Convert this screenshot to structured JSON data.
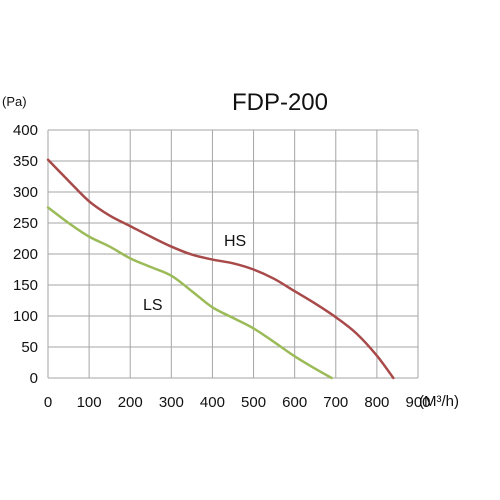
{
  "chart_data": {
    "type": "line",
    "title": "FDP-200",
    "ylabel": "(Pa)",
    "xlabel": "(M³/h)",
    "xlim": [
      0,
      900
    ],
    "ylim": [
      0,
      400
    ],
    "x_ticks": [
      0,
      100,
      200,
      300,
      400,
      500,
      600,
      700,
      800,
      900
    ],
    "y_ticks": [
      0,
      50,
      100,
      150,
      200,
      250,
      300,
      350,
      400
    ],
    "grid": true,
    "series": [
      {
        "name": "HS",
        "color": "#a84a4a",
        "points": [
          [
            0,
            352
          ],
          [
            50,
            318
          ],
          [
            100,
            285
          ],
          [
            150,
            262
          ],
          [
            200,
            245
          ],
          [
            250,
            228
          ],
          [
            300,
            212
          ],
          [
            350,
            199
          ],
          [
            400,
            191
          ],
          [
            450,
            185
          ],
          [
            500,
            175
          ],
          [
            550,
            160
          ],
          [
            600,
            140
          ],
          [
            650,
            120
          ],
          [
            700,
            98
          ],
          [
            750,
            72
          ],
          [
            800,
            36
          ],
          [
            840,
            0
          ]
        ]
      },
      {
        "name": "LS",
        "color": "#9bbb59",
        "points": [
          [
            0,
            275
          ],
          [
            50,
            250
          ],
          [
            100,
            228
          ],
          [
            150,
            212
          ],
          [
            200,
            193
          ],
          [
            250,
            179
          ],
          [
            300,
            165
          ],
          [
            350,
            140
          ],
          [
            400,
            114
          ],
          [
            450,
            97
          ],
          [
            500,
            80
          ],
          [
            550,
            58
          ],
          [
            600,
            35
          ],
          [
            650,
            15
          ],
          [
            690,
            0
          ]
        ]
      }
    ]
  }
}
